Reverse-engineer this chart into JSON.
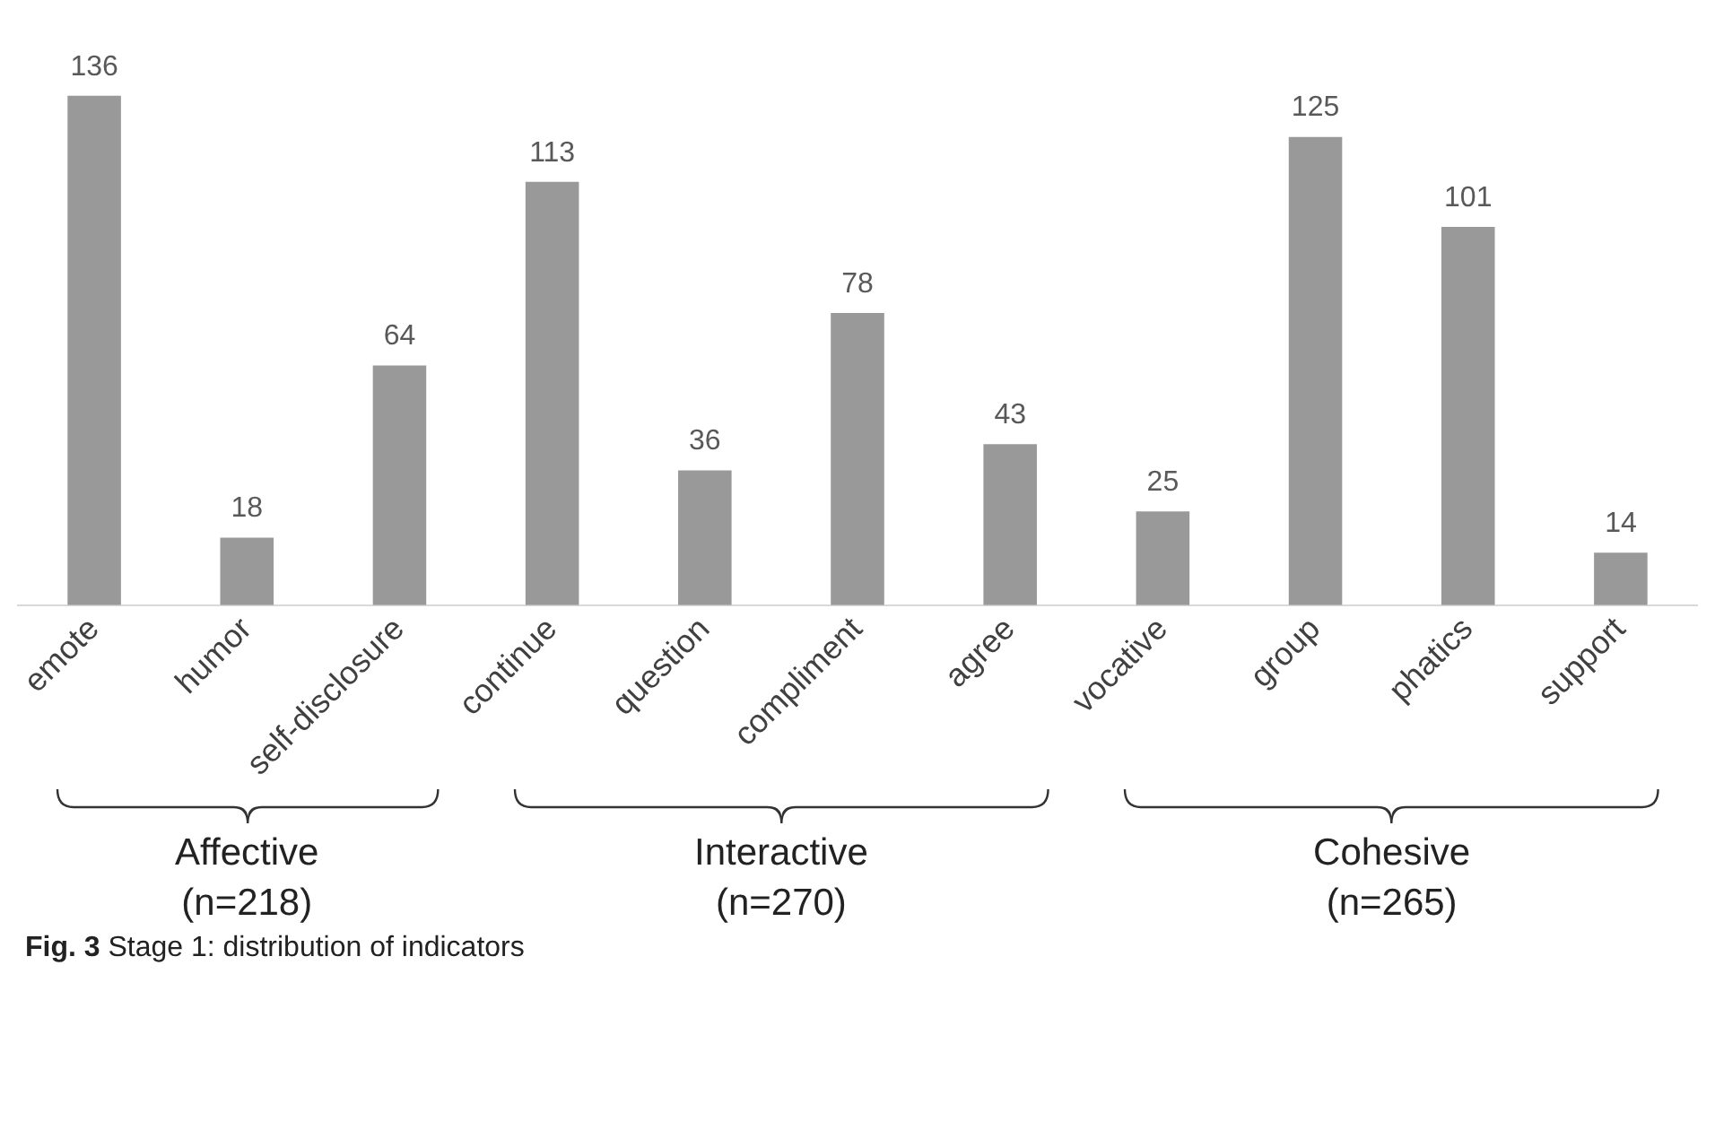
{
  "chart_data": {
    "type": "bar",
    "categories": [
      "emote",
      "humor",
      "self-disclosure",
      "continue",
      "question",
      "compliment",
      "agree",
      "vocative",
      "group",
      "phatics",
      "support"
    ],
    "values": [
      136,
      18,
      64,
      113,
      36,
      78,
      43,
      25,
      125,
      101,
      14
    ],
    "color": "#999999",
    "data_labels": true,
    "grid": false,
    "legend": false,
    "tick_labels": "x",
    "annotations": [
      "Affective\n(n=218)",
      "Interactive\n(n=270)",
      "Cohesive\n(n=265)",
      "Fig. 3 Stage 1: distribution of indicators"
    ]
  }
}
